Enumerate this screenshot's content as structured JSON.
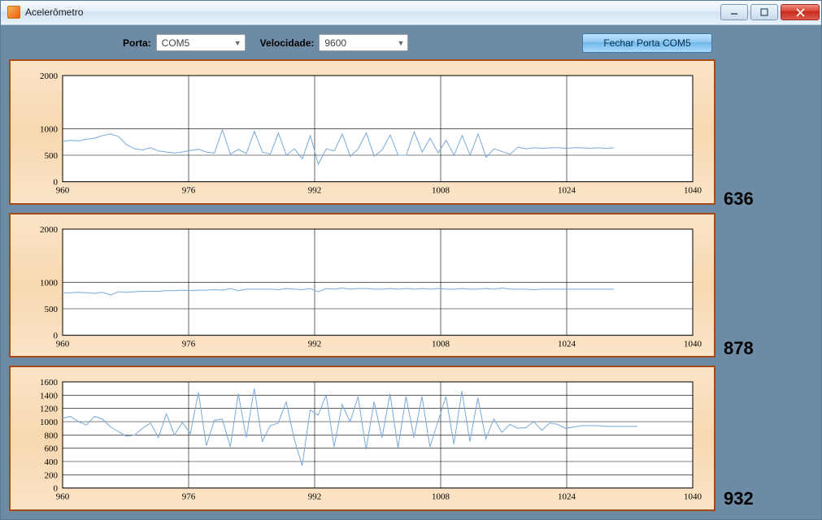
{
  "window": {
    "title": "Acelerômetro"
  },
  "toolbar": {
    "porta_label": "Porta:",
    "porta_value": "COM5",
    "velocidade_label": "Velocidade:",
    "velocidade_value": "9600",
    "button_label": "Fechar Porta COM5"
  },
  "readouts": {
    "chart1": "636",
    "chart2": "878",
    "chart3": "932"
  },
  "charts": {
    "common": {
      "x_min": 960,
      "x_max": 1040,
      "x_tick_step": 16,
      "grid_color": "#000000",
      "background": "#ffffff",
      "line_color": "#7aa8d9",
      "line_width": 1
    },
    "chart1": {
      "type": "line",
      "y_min": 0,
      "y_max": 2000,
      "y_ticks": [
        0,
        500,
        1000,
        2000
      ],
      "data_x_end": 1030,
      "values": [
        760,
        780,
        770,
        800,
        820,
        870,
        900,
        850,
        700,
        620,
        600,
        640,
        580,
        560,
        540,
        560,
        590,
        610,
        560,
        540,
        980,
        520,
        610,
        530,
        950,
        560,
        520,
        920,
        500,
        620,
        430,
        870,
        330,
        620,
        580,
        900,
        480,
        620,
        920,
        480,
        600,
        880,
        500,
        500,
        940,
        560,
        820,
        540,
        780,
        500,
        870,
        500,
        900,
        460,
        620,
        570,
        520,
        650,
        620,
        640,
        630,
        640,
        640,
        630,
        640,
        640,
        630,
        640,
        630,
        640
      ]
    },
    "chart2": {
      "type": "line",
      "y_min": 0,
      "y_max": 2000,
      "y_ticks": [
        0,
        500,
        1000,
        2000
      ],
      "data_x_end": 1030,
      "values": [
        800,
        800,
        810,
        800,
        790,
        810,
        760,
        820,
        810,
        820,
        830,
        830,
        830,
        840,
        840,
        850,
        840,
        850,
        850,
        860,
        850,
        880,
        840,
        870,
        870,
        870,
        870,
        860,
        880,
        870,
        860,
        880,
        820,
        880,
        870,
        890,
        870,
        880,
        880,
        870,
        870,
        880,
        870,
        880,
        870,
        880,
        870,
        880,
        870,
        870,
        880,
        870,
        870,
        880,
        870,
        890,
        870,
        870,
        870,
        860,
        870,
        870,
        870,
        870,
        870,
        870,
        870,
        870,
        870,
        870
      ]
    },
    "chart3": {
      "type": "line",
      "y_min": 0,
      "y_max": 1600,
      "y_ticks": [
        0,
        200,
        400,
        600,
        800,
        1000,
        1200,
        1400,
        1600
      ],
      "data_x_end": 1033,
      "values": [
        1050,
        1080,
        1000,
        950,
        1080,
        1040,
        920,
        850,
        780,
        800,
        900,
        980,
        760,
        1120,
        800,
        990,
        820,
        1440,
        640,
        1020,
        1040,
        620,
        1420,
        760,
        1500,
        700,
        940,
        980,
        1300,
        740,
        340,
        1180,
        1100,
        1400,
        620,
        1260,
        1000,
        1380,
        580,
        1300,
        760,
        1420,
        600,
        1380,
        760,
        1380,
        620,
        1000,
        1380,
        660,
        1460,
        700,
        1360,
        740,
        1040,
        840,
        960,
        900,
        910,
        1000,
        870,
        980,
        960,
        900,
        920,
        940,
        940,
        940,
        930,
        930,
        930,
        930,
        930
      ]
    }
  }
}
